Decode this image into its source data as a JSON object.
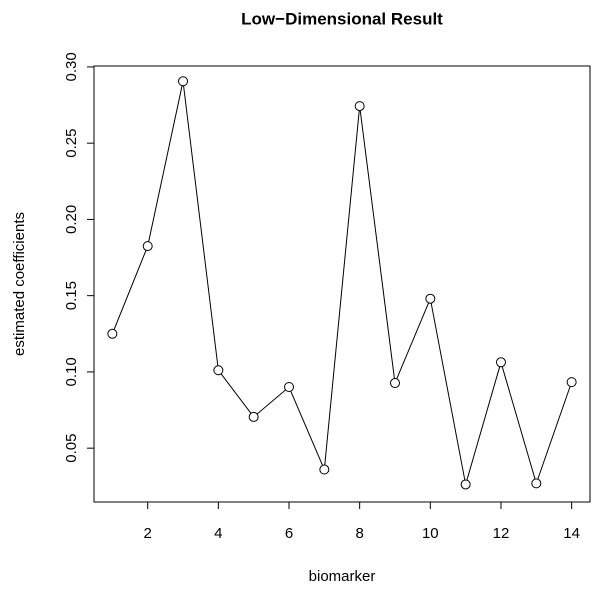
{
  "chart_data": {
    "type": "line",
    "title": "Low−Dimensional Result",
    "x_label": "biomarker",
    "y_label": "estimated coefficients",
    "x": [
      1,
      2,
      3,
      4,
      5,
      6,
      7,
      8,
      9,
      10,
      11,
      12,
      13,
      14
    ],
    "series": [
      {
        "color": "#000000",
        "values": [
          0.125,
          0.1825,
          0.2906,
          0.1011,
          0.0705,
          0.0901,
          0.036,
          0.2743,
          0.0927,
          0.148,
          0.0262,
          0.1063,
          0.0269,
          0.0933
        ]
      }
    ],
    "xlim": [
      0.48,
      14.52
    ],
    "xticks": [
      2,
      4,
      6,
      8,
      10,
      12,
      14
    ],
    "ylim": [
      0.0147,
      0.3006
    ],
    "yticks": [
      0.05,
      {
        "value": 0.1,
        "label": "0.10"
      },
      0.15,
      {
        "value": 0.2,
        "label": "0.20"
      },
      0.25,
      {
        "value": 0.3,
        "label": "0.30"
      }
    ]
  }
}
